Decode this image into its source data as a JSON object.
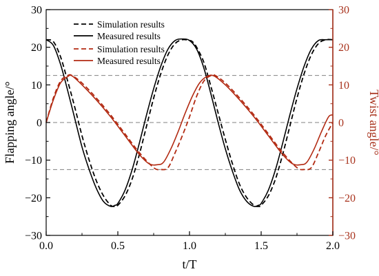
{
  "chart_data": {
    "type": "line",
    "xlabel": "t/T",
    "ylabel_left": "Flapping angle/°",
    "ylabel_right": "Twist angle/°",
    "xlim": [
      0,
      2.0
    ],
    "ylim_left": [
      -30,
      30
    ],
    "ylim_right": [
      -30,
      30
    ],
    "x_ticks": [
      "0.0",
      "0.5",
      "1.0",
      "1.5",
      "2.0"
    ],
    "y_ticks_left": [
      "30",
      "20",
      "10",
      "0",
      "−10",
      "−20",
      "−30"
    ],
    "y_ticks_right": [
      "30",
      "20",
      "10",
      "0",
      "−10",
      "−20",
      "−30"
    ],
    "reference_lines_y": [
      12.5,
      0,
      -12.5
    ],
    "legend_position": "top-center",
    "colors": {
      "flapping": "#000000",
      "twist": "#b22a12",
      "right_axis": "#a8321c",
      "reference": "#808080"
    },
    "series": [
      {
        "name": "Simulation results",
        "axis": "left",
        "style": "dashed",
        "color": "#000000",
        "x": [
          0.0,
          0.05,
          0.1,
          0.15,
          0.2,
          0.25,
          0.3,
          0.35,
          0.4,
          0.45,
          0.48,
          0.5,
          0.55,
          0.6,
          0.65,
          0.7,
          0.75,
          0.8,
          0.85,
          0.9,
          0.95,
          1.0,
          1.02,
          1.05,
          1.1,
          1.15,
          1.2,
          1.25,
          1.3,
          1.35,
          1.4,
          1.45,
          1.48,
          1.5,
          1.55,
          1.6,
          1.65,
          1.7,
          1.75,
          1.8,
          1.85,
          1.9,
          1.95,
          2.0
        ],
        "values": [
          22.0,
          21.5,
          17.5,
          11.0,
          4.0,
          -3.5,
          -10.0,
          -15.5,
          -19.5,
          -22.0,
          -22.3,
          -22.0,
          -19.5,
          -15.0,
          -8.5,
          -1.0,
          6.5,
          13.0,
          18.0,
          21.0,
          22.0,
          21.8,
          21.5,
          20.0,
          16.0,
          9.5,
          2.5,
          -4.5,
          -11.0,
          -16.5,
          -20.0,
          -22.0,
          -22.3,
          -22.0,
          -19.5,
          -15.0,
          -8.5,
          -1.0,
          6.5,
          13.0,
          18.0,
          21.0,
          22.0,
          22.0
        ]
      },
      {
        "name": "Measured results",
        "axis": "left",
        "style": "solid",
        "color": "#000000",
        "x": [
          0.0,
          0.05,
          0.1,
          0.15,
          0.2,
          0.25,
          0.3,
          0.35,
          0.4,
          0.45,
          0.48,
          0.5,
          0.55,
          0.6,
          0.65,
          0.7,
          0.75,
          0.8,
          0.85,
          0.9,
          0.95,
          1.0,
          1.05,
          1.1,
          1.15,
          1.2,
          1.25,
          1.3,
          1.35,
          1.4,
          1.45,
          1.48,
          1.5,
          1.55,
          1.6,
          1.65,
          1.7,
          1.75,
          1.8,
          1.85,
          1.9,
          1.95,
          2.0
        ],
        "values": [
          22.0,
          20.5,
          15.5,
          8.5,
          1.0,
          -6.5,
          -12.5,
          -17.5,
          -21.0,
          -22.3,
          -22.0,
          -21.5,
          -18.0,
          -12.5,
          -5.5,
          2.0,
          9.0,
          15.0,
          19.5,
          21.8,
          22.2,
          21.8,
          19.5,
          14.5,
          7.5,
          0.0,
          -7.0,
          -13.0,
          -18.0,
          -21.0,
          -22.3,
          -22.0,
          -21.5,
          -18.0,
          -12.5,
          -5.5,
          2.0,
          9.0,
          15.0,
          19.5,
          21.8,
          22.0,
          22.0
        ]
      },
      {
        "name": "Simulation results",
        "axis": "right",
        "style": "dashed",
        "color": "#b22a12",
        "x": [
          0.0,
          0.05,
          0.1,
          0.15,
          0.18,
          0.25,
          0.35,
          0.45,
          0.55,
          0.65,
          0.75,
          0.8,
          0.85,
          0.9,
          0.95,
          1.0,
          1.05,
          1.1,
          1.15,
          1.18,
          1.25,
          1.35,
          1.45,
          1.55,
          1.65,
          1.75,
          1.8,
          1.85,
          1.9,
          1.95,
          2.0
        ],
        "values": [
          0.0,
          6.5,
          11.0,
          12.5,
          12.5,
          10.5,
          6.5,
          2.0,
          -3.0,
          -8.0,
          -12.0,
          -12.5,
          -12.0,
          -8.0,
          -3.5,
          1.5,
          7.0,
          11.0,
          12.5,
          12.5,
          10.5,
          6.5,
          2.0,
          -3.0,
          -8.0,
          -12.0,
          -12.5,
          -12.0,
          -8.0,
          -3.5,
          0.0
        ]
      },
      {
        "name": "Measured results",
        "axis": "right",
        "style": "solid",
        "color": "#b22a12",
        "x": [
          0.0,
          0.05,
          0.1,
          0.15,
          0.18,
          0.25,
          0.35,
          0.45,
          0.55,
          0.65,
          0.72,
          0.78,
          0.82,
          0.87,
          0.92,
          0.97,
          1.02,
          1.07,
          1.12,
          1.17,
          1.25,
          1.35,
          1.45,
          1.55,
          1.65,
          1.72,
          1.78,
          1.82,
          1.87,
          1.92,
          1.97,
          2.0
        ],
        "values": [
          0.0,
          6.0,
          10.5,
          12.2,
          12.4,
          10.0,
          6.0,
          1.5,
          -3.5,
          -8.5,
          -11.0,
          -11.2,
          -10.5,
          -7.0,
          -2.5,
          2.5,
          7.0,
          10.5,
          12.2,
          12.4,
          10.0,
          6.0,
          1.5,
          -3.5,
          -8.5,
          -11.0,
          -11.2,
          -10.5,
          -7.0,
          -2.5,
          1.5,
          2.0
        ]
      }
    ]
  }
}
